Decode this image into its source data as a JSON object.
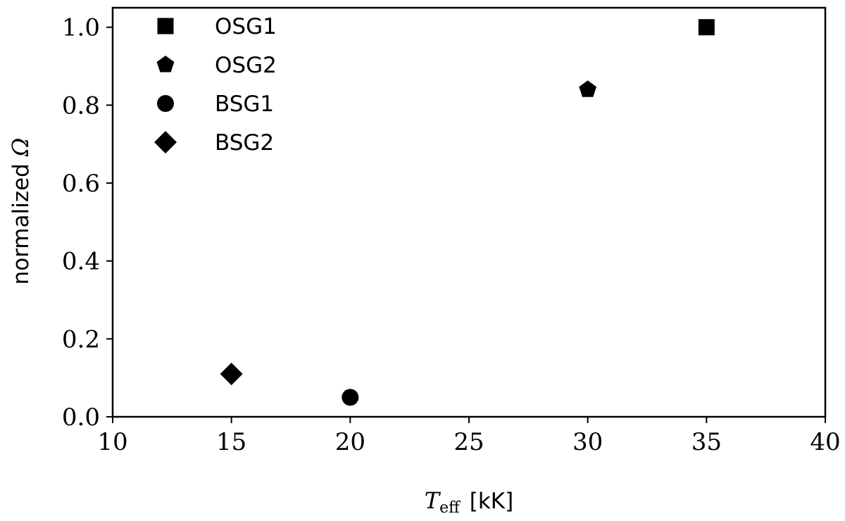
{
  "chart_data": {
    "type": "scatter",
    "title": "",
    "xlabel": {
      "symbol": "T",
      "subscript": "eff",
      "unit": "[kK]"
    },
    "ylabel": {
      "text": "normalized",
      "symbol": "Ω"
    },
    "xlim": [
      10,
      40
    ],
    "ylim": [
      0.0,
      1.05
    ],
    "xticks": [
      10,
      15,
      20,
      25,
      30,
      35,
      40
    ],
    "xtick_labels": [
      "10",
      "15",
      "20",
      "25",
      "30",
      "35",
      "40"
    ],
    "yticks": [
      0.0,
      0.2,
      0.4,
      0.6,
      0.8,
      1.0
    ],
    "ytick_labels": [
      "0.0",
      "0.2",
      "0.4",
      "0.6",
      "0.8",
      "1.0"
    ],
    "grid": false,
    "legend_position": "top-left",
    "color": "#000000",
    "series": [
      {
        "name": "OSG1",
        "marker": "square",
        "points": [
          {
            "x": 35,
            "y": 1.0
          }
        ]
      },
      {
        "name": "OSG2",
        "marker": "pentagon",
        "points": [
          {
            "x": 30,
            "y": 0.84
          }
        ]
      },
      {
        "name": "BSG1",
        "marker": "circle",
        "points": [
          {
            "x": 20,
            "y": 0.05
          }
        ]
      },
      {
        "name": "BSG2",
        "marker": "diamond",
        "points": [
          {
            "x": 15,
            "y": 0.11
          }
        ]
      }
    ]
  }
}
